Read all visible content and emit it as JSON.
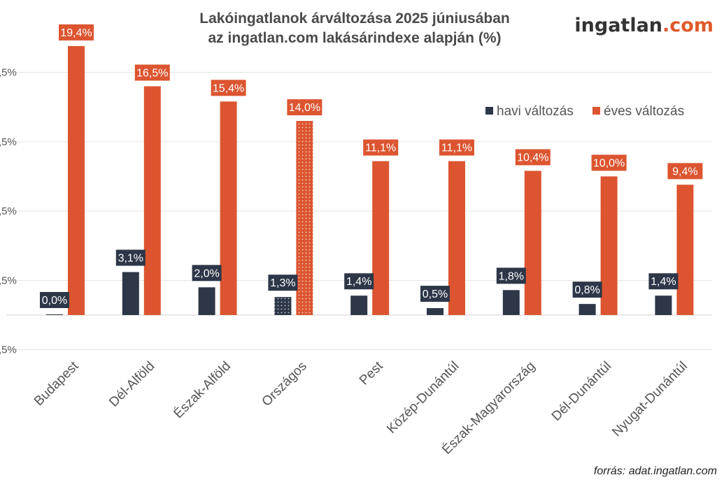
{
  "header": {
    "title_line1": "Lakóingatlanok árváltozása 2025 júniusában",
    "title_line2": "az ingatlan.com lakásárindexe alapján (%)",
    "brand_part1": "ingatlan",
    "brand_part2": ".com"
  },
  "source": "forrás: adat.ingatlan.com",
  "chart_data": {
    "type": "bar",
    "title": "Lakóingatlanok árváltozása 2025 júniusában az ingatlan.com lakásárindexe alapján (%)",
    "categories": [
      "Budapest",
      "Dél-Alföld",
      "Észak-Alföld",
      "Országos",
      "Pest",
      "Közép-Dunántúl",
      "Észak-Magyarország",
      "Dél-Dunántúl",
      "Nyugat-Dunántúl"
    ],
    "series": [
      {
        "name": "havi változás",
        "color": "#2d3748",
        "values": [
          0.0,
          3.1,
          2.0,
          1.3,
          1.4,
          0.5,
          1.8,
          0.8,
          1.4
        ],
        "labels": [
          "0,0%",
          "3,1%",
          "2,0%",
          "1,3%",
          "1,4%",
          "0,5%",
          "1,8%",
          "0,8%",
          "1,4%"
        ]
      },
      {
        "name": "éves változás",
        "color": "#dc5530",
        "values": [
          19.4,
          16.5,
          15.4,
          14.0,
          11.1,
          11.1,
          10.4,
          10.0,
          9.4
        ],
        "labels": [
          "19,4%",
          "16,5%",
          "15,4%",
          "14,0%",
          "11,1%",
          "11,1%",
          "10,4%",
          "10,0%",
          "9,4%"
        ]
      }
    ],
    "highlight_category": "Országos",
    "ylim": [
      -2.5,
      20.5
    ],
    "yticks": [
      -2.5,
      2.5,
      7.5,
      12.5,
      17.5
    ],
    "ytick_labels": [
      ",5%",
      ",5%",
      ",5%",
      ",5%",
      ",5%"
    ],
    "grid": true,
    "legend_position": "top-right",
    "xlabel": "",
    "ylabel": ""
  }
}
